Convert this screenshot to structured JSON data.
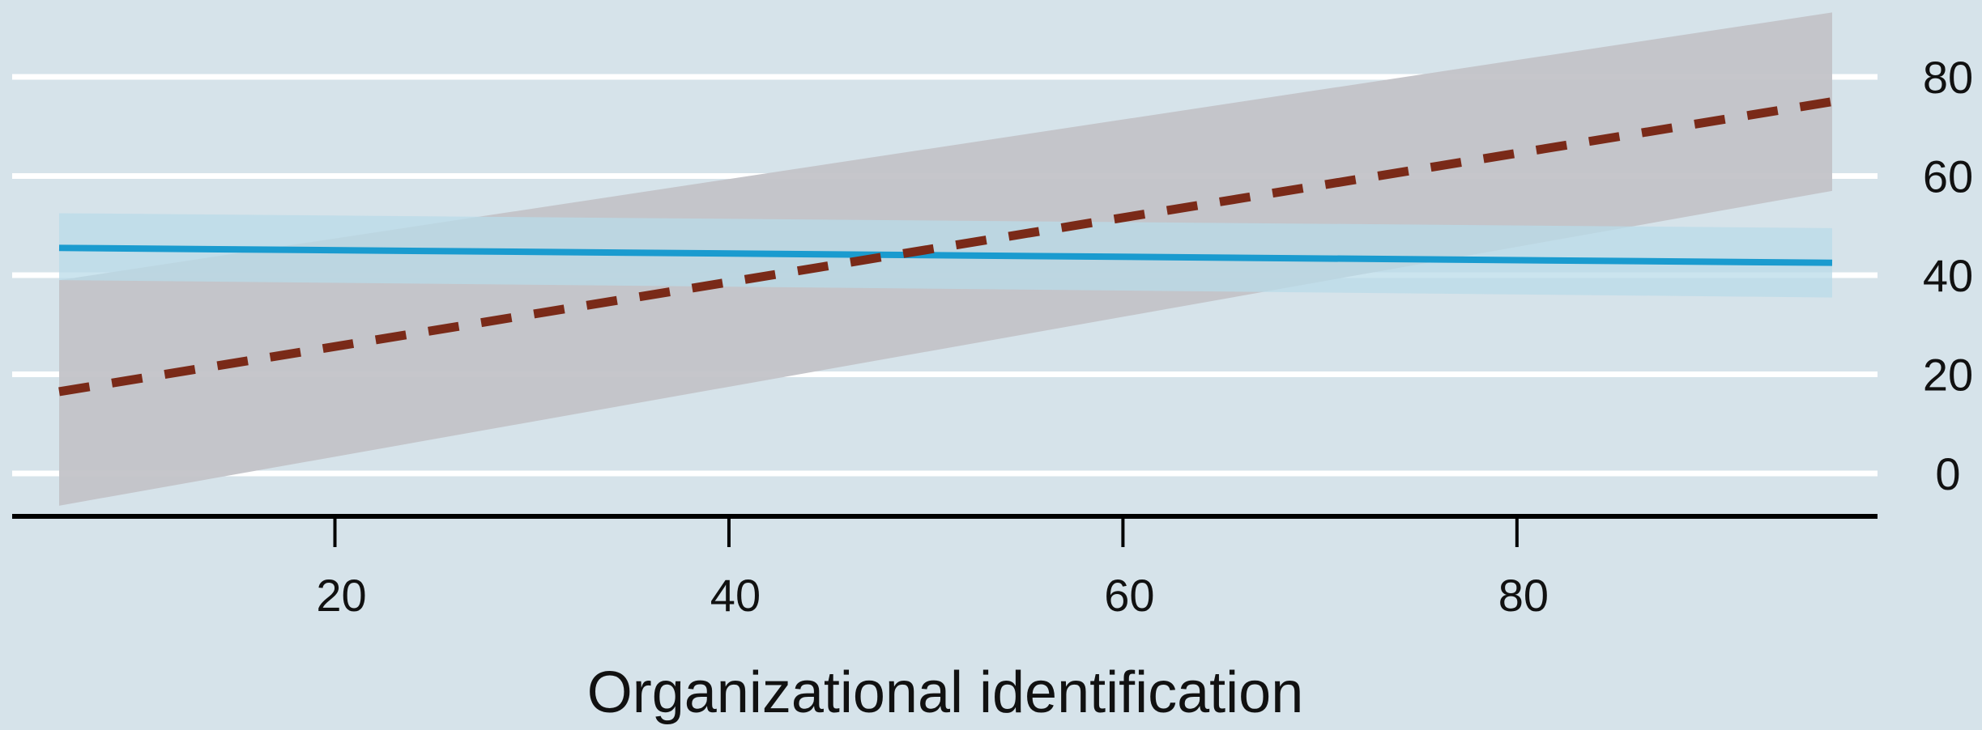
{
  "chart_data": {
    "type": "line",
    "title": "",
    "xlabel": "Organizational identification",
    "ylabel": "",
    "xlim": [
      3.5,
      99
    ],
    "ylim": [
      -9,
      92
    ],
    "x_ticks": [
      20,
      40,
      60,
      80
    ],
    "y_ticks": [
      0,
      20,
      40,
      60,
      80
    ],
    "y_axis_side": "right",
    "grid": "horizontal",
    "legend": "none",
    "series": [
      {
        "kind": "solid",
        "color": "#1a9bcf",
        "band_color": "#b9dbe8",
        "x": [
          6,
          96
        ],
        "y": [
          45.5,
          42.5
        ],
        "ci_lower": [
          39.0,
          35.5
        ],
        "ci_upper": [
          52.5,
          49.5
        ]
      },
      {
        "kind": "dashed",
        "color": "#7a2a18",
        "band_color": "#c3c3c8",
        "x": [
          6,
          96
        ],
        "y": [
          16.5,
          75.0
        ],
        "ci_lower": [
          -6.5,
          57.0
        ],
        "ci_upper": [
          39.0,
          93.0
        ]
      }
    ]
  }
}
